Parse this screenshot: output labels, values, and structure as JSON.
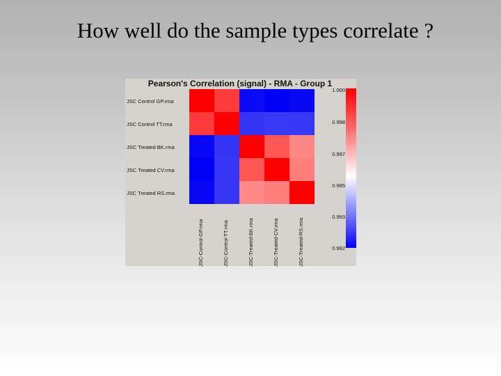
{
  "slide": {
    "title": "How well do the sample types correlate ?"
  },
  "chart_data": {
    "type": "heatmap",
    "title": "Pearson's Correlation (signal) - RMA - Group 1",
    "rows": [
      "JSC Control GP.rma",
      "JSC Control TT.rma",
      "JSC Treated BK.rma",
      "JSC Treated CV.rma",
      "JSC Treated RS.rma"
    ],
    "columns": [
      "JSC-Control-GP.rma",
      "JSC-Control-TT.rma",
      "JSC-Treated-BK.rma",
      "JSC-Treated-CV.rma",
      "JSC-Treated-RS.rma"
    ],
    "values": [
      [
        1.0,
        0.9993,
        0.9921,
        0.992,
        0.9921
      ],
      [
        0.9993,
        1.0,
        0.9925,
        0.9925,
        0.9925
      ],
      [
        0.9921,
        0.9925,
        1.0,
        0.9985,
        0.9978
      ],
      [
        0.992,
        0.9925,
        0.9985,
        1.0,
        0.998
      ],
      [
        0.9921,
        0.9925,
        0.9978,
        0.998,
        1.0
      ]
    ],
    "colorbar": {
      "ticks": [
        "1.000",
        "0.998",
        "0.997",
        "0.995",
        "0.993",
        "0.992"
      ],
      "range": [
        0.992,
        1.0
      ],
      "colors": {
        "high": "#ff0000",
        "mid": "#ffffff",
        "low": "#0000ff"
      }
    },
    "cell_colors": [
      [
        "#ff0000",
        "#ff3a3a",
        "#0a0af8",
        "#0000f8",
        "#0808f4"
      ],
      [
        "#ff3a3a",
        "#ff0000",
        "#3434f6",
        "#3838f6",
        "#3838f4"
      ],
      [
        "#0808f6",
        "#3434f6",
        "#ff0000",
        "#ff5656",
        "#ff8686"
      ],
      [
        "#0000f6",
        "#3636f6",
        "#ff5656",
        "#ff0000",
        "#ff7e7e"
      ],
      [
        "#0808f4",
        "#3636f4",
        "#ff8888",
        "#ff7e7e",
        "#ff0000"
      ]
    ]
  }
}
